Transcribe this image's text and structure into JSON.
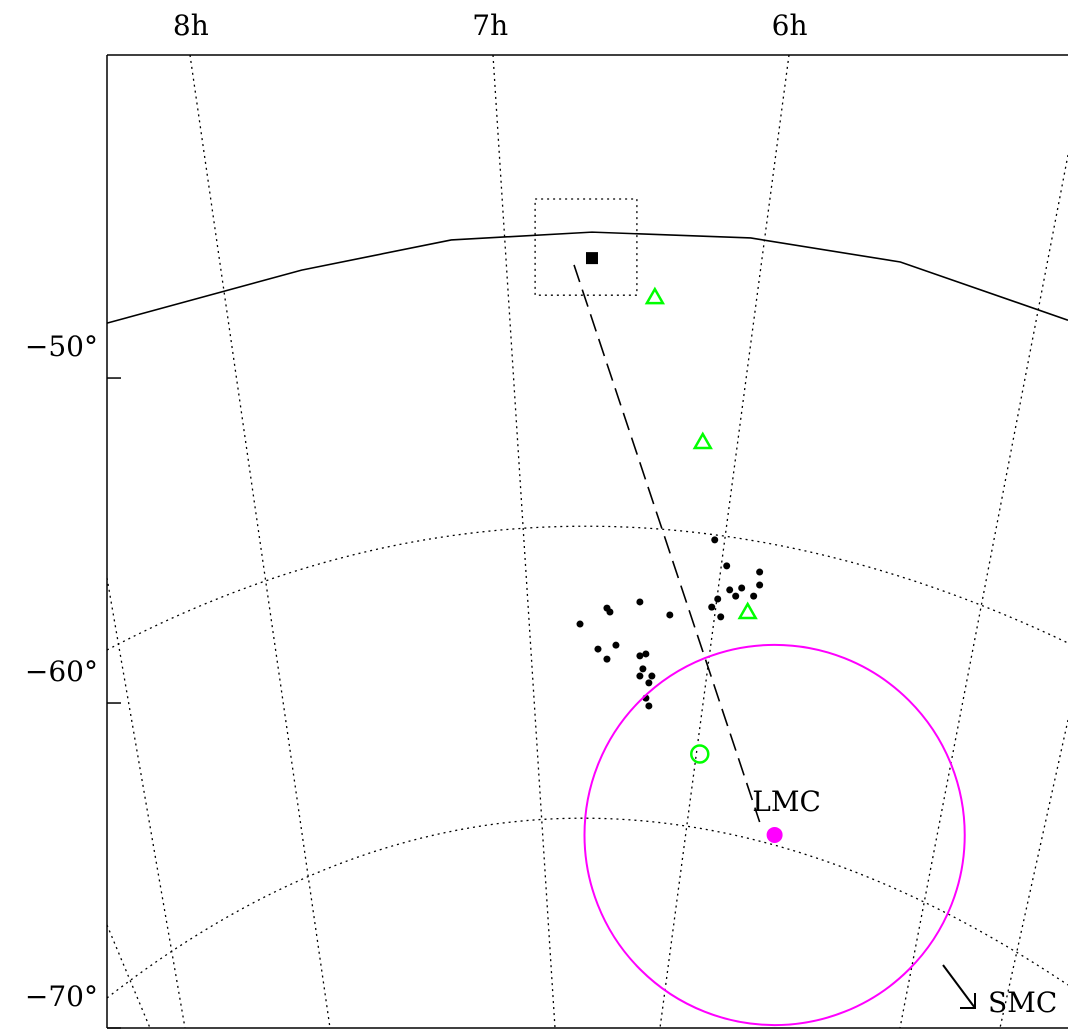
{
  "chart_data": {
    "type": "sky-map",
    "xlim": [
      8.28,
      5.07
    ],
    "ylim": [
      -70,
      -40.06
    ],
    "xticks": [
      {
        "value": 8,
        "label": "8h"
      },
      {
        "value": 7,
        "label": "7h"
      },
      {
        "value": 6,
        "label": "6h"
      }
    ],
    "yticks": [
      {
        "value": -50,
        "label": "−50°"
      },
      {
        "value": -60,
        "label": "−60°"
      },
      {
        "value": -70,
        "label": "−70°"
      }
    ],
    "series": [
      {
        "marker": "dot",
        "color": "#000000",
        "x": [
          6.25,
          6.21,
          6.1,
          6.2,
          6.16,
          6.18,
          6.12,
          6.1,
          6.24,
          6.26,
          6.23,
          6.4,
          6.5,
          6.61,
          6.6,
          6.7,
          6.58,
          6.64,
          6.61,
          6.5,
          6.48,
          6.49,
          6.5,
          6.46,
          6.47,
          6.48,
          6.47
        ],
        "y": [
          -54.98,
          -55.78,
          -55.97,
          -56.52,
          -56.46,
          -56.71,
          -56.71,
          -56.37,
          -56.8,
          -57.05,
          -57.35,
          -57.29,
          -56.89,
          -57.08,
          -57.2,
          -57.57,
          -58.22,
          -58.34,
          -58.65,
          -58.55,
          -58.49,
          -58.95,
          -59.17,
          -59.17,
          -59.38,
          -59.85,
          -60.09
        ]
      },
      {
        "marker": "triangle",
        "color": "#00ff00",
        "x": [
          6.45,
          6.29,
          6.14
        ],
        "y": [
          -47.51,
          -51.97,
          -57.2
        ]
      },
      {
        "marker": "ring",
        "color": "#00ff00",
        "x": [
          6.3
        ],
        "y": [
          -61.57
        ]
      },
      {
        "marker": "square",
        "color": "#000000",
        "x": [
          6.66
        ],
        "y": [
          -46.31
        ]
      },
      {
        "marker": "big-dot",
        "color": "#ff00ff",
        "x": [
          6.05
        ],
        "y": [
          -64.06
        ],
        "label": "LMC",
        "radius": 5.85
      }
    ],
    "lines": [
      {
        "style": "solid",
        "color": "#000000",
        "x": [
          8.28,
          7.63,
          7.13,
          6.66,
          6.13,
          5.63,
          5.07
        ],
        "y": [
          -48.31,
          -46.68,
          -45.75,
          -45.51,
          -45.69,
          -46.43,
          -48.22
        ]
      },
      {
        "style": "dashed",
        "color": "#000000",
        "x": [
          6.72,
          6.1
        ],
        "y": [
          -46.52,
          -63.66
        ]
      }
    ],
    "box": {
      "x": [
        6.85,
        6.51
      ],
      "y": [
        -44.49,
        -47.45
      ]
    },
    "annotation": "SMC"
  }
}
